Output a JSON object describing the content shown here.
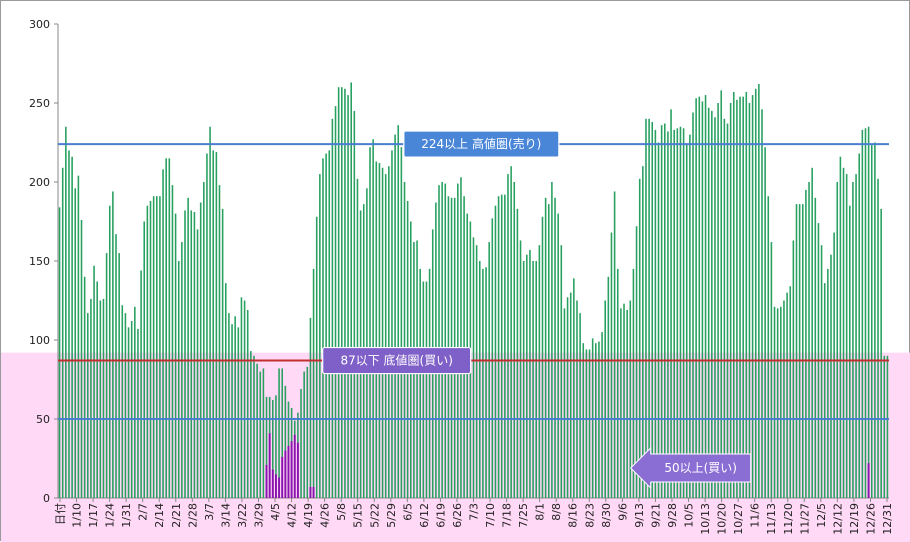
{
  "chart_data": {
    "type": "bar",
    "title": "",
    "xlabel": "",
    "ylabel": "",
    "ylim": [
      0,
      300
    ],
    "yticks": [
      0,
      50,
      100,
      150,
      200,
      250,
      300
    ],
    "grid": false,
    "xticks": [
      "日付",
      "1/10",
      "1/17",
      "1/24",
      "1/31",
      "2/7",
      "2/14",
      "2/21",
      "2/28",
      "3/7",
      "3/14",
      "3/22",
      "3/29",
      "4/5",
      "4/12",
      "4/19",
      "4/26",
      "5/8",
      "5/15",
      "5/22",
      "5/29",
      "6/5",
      "6/12",
      "6/19",
      "6/26",
      "7/3",
      "7/10",
      "7/18",
      "7/25",
      "8/1",
      "8/8",
      "8/16",
      "8/23",
      "8/30",
      "9/6",
      "9/13",
      "9/21",
      "9/28",
      "10/5",
      "10/13",
      "10/20",
      "10/27",
      "11/6",
      "11/13",
      "11/20",
      "11/27",
      "12/5",
      "12/12",
      "12/19",
      "12/26",
      "12/31"
    ],
    "background_band": {
      "y_max": 92,
      "color": "#ffd9f5"
    },
    "series": [
      {
        "color": "#27a060",
        "values": [
          184,
          209,
          235,
          220,
          216,
          196,
          204,
          176,
          140,
          117,
          126,
          147,
          137,
          125,
          126,
          155,
          185,
          194,
          167,
          155,
          122,
          117,
          108,
          112,
          121,
          107,
          144,
          175,
          185,
          188,
          191,
          191,
          191,
          208,
          215,
          215,
          198,
          180,
          150,
          162,
          182,
          190,
          182,
          181,
          170,
          187,
          200,
          218,
          235,
          220,
          219,
          198,
          183,
          136,
          117,
          110,
          115,
          108,
          127,
          125,
          119,
          93,
          90,
          85,
          80,
          82,
          64,
          64,
          62,
          65,
          82,
          82,
          71,
          61,
          57,
          49,
          54,
          69,
          80,
          83,
          114,
          145,
          178,
          205,
          215,
          218,
          220,
          240,
          248,
          260,
          260,
          259,
          255,
          263,
          245,
          202,
          182,
          186,
          196,
          222,
          227,
          213,
          212,
          209,
          205,
          210,
          220,
          230,
          236,
          222,
          200,
          188,
          175,
          162,
          163,
          145,
          137,
          137,
          145,
          170,
          187,
          198,
          200,
          199,
          191,
          190,
          190,
          199,
          203,
          191,
          180,
          175,
          165,
          160,
          150,
          145,
          146,
          162,
          177,
          185,
          191,
          192,
          192,
          205,
          210,
          200,
          183,
          163,
          150,
          154,
          157,
          150,
          150,
          160,
          178,
          190,
          186,
          200,
          190,
          180,
          160,
          120,
          127,
          130,
          139,
          125,
          117,
          98,
          94,
          94,
          101,
          98,
          99,
          105,
          125,
          140,
          168,
          194,
          145,
          120,
          123,
          119,
          125,
          145,
          172,
          202,
          210,
          240,
          240,
          238,
          233,
          225,
          236,
          237,
          232,
          246,
          233,
          234,
          235,
          234,
          224,
          230,
          244,
          253,
          254,
          251,
          255,
          247,
          245,
          241,
          250,
          258,
          240,
          237,
          250,
          257,
          252,
          254,
          254,
          257,
          250,
          255,
          259,
          262,
          246,
          222,
          191,
          162,
          121,
          120,
          121,
          125,
          130,
          134,
          163,
          186,
          186,
          186,
          195,
          200,
          209,
          190,
          174,
          160,
          136,
          145,
          154,
          168,
          200,
          216,
          209,
          205,
          185,
          200,
          205,
          218,
          233,
          234,
          235,
          224,
          225,
          202,
          183,
          90,
          90
        ]
      },
      {
        "color": "#8b12b0",
        "values": [
          0,
          0,
          0,
          0,
          0,
          0,
          0,
          0,
          0,
          0,
          0,
          0,
          0,
          0,
          0,
          0,
          0,
          0,
          0,
          0,
          0,
          0,
          0,
          0,
          0,
          0,
          0,
          0,
          0,
          0,
          0,
          0,
          0,
          0,
          0,
          0,
          0,
          0,
          0,
          0,
          0,
          0,
          0,
          0,
          0,
          0,
          0,
          0,
          0,
          0,
          0,
          0,
          0,
          0,
          0,
          0,
          0,
          0,
          0,
          0,
          0,
          0,
          0,
          0,
          0,
          0,
          21,
          41,
          18,
          15,
          13,
          26,
          30,
          33,
          36,
          40,
          35,
          0,
          0,
          0,
          7,
          7,
          0,
          0,
          0,
          0,
          0,
          0,
          0,
          0,
          0,
          0,
          0,
          0,
          0,
          0,
          0,
          0,
          0,
          0,
          0,
          0,
          0,
          0,
          0,
          0,
          0,
          0,
          0,
          0,
          0,
          0,
          0,
          0,
          0,
          0,
          0,
          0,
          0,
          0,
          0,
          0,
          0,
          0,
          0,
          0,
          0,
          0,
          0,
          0,
          0,
          0,
          0,
          0,
          0,
          0,
          0,
          0,
          0,
          0,
          0,
          0,
          0,
          0,
          0,
          0,
          0,
          0,
          0,
          0,
          0,
          0,
          0,
          0,
          0,
          0,
          0,
          0,
          0,
          0,
          0,
          0,
          0,
          0,
          0,
          0,
          0,
          0,
          0,
          0,
          0,
          0,
          0,
          0,
          0,
          0,
          0,
          0,
          0,
          0,
          0,
          0,
          0,
          0,
          0,
          0,
          0,
          0,
          0,
          0,
          0,
          0,
          0,
          0,
          0,
          0,
          0,
          0,
          0,
          0,
          0,
          0,
          0,
          0,
          0,
          0,
          0,
          0,
          0,
          0,
          0,
          0,
          0,
          0,
          0,
          0,
          0,
          0,
          0,
          0,
          0,
          0,
          0,
          0,
          0,
          0,
          0,
          0,
          0,
          0,
          0,
          0,
          0,
          0,
          0,
          0,
          0,
          0,
          0,
          0,
          0,
          0,
          0,
          0,
          0,
          0,
          0,
          0,
          0,
          0,
          0,
          0,
          0,
          0,
          0,
          0,
          0,
          0,
          22,
          0,
          0,
          0,
          0,
          0,
          0,
          0,
          0,
          0,
          0,
          0,
          0,
          0,
          0,
          0,
          0,
          0,
          0,
          0,
          0,
          0,
          0,
          0,
          0,
          0,
          0,
          0,
          0,
          0,
          0,
          0,
          0,
          0,
          0,
          0,
          0,
          0,
          0,
          0,
          0,
          0,
          0,
          0,
          0,
          0
        ]
      }
    ],
    "reference_lines": [
      {
        "y": 224,
        "color": "#4a7fd0",
        "label": "224以上  高値圏(売り)"
      },
      {
        "y": 87,
        "color": "#c03030",
        "label": "87以下  底値圏(買い)"
      },
      {
        "y": 50,
        "color": "#4a7fd0",
        "label": ""
      }
    ],
    "annotations": [
      {
        "text": "224以上  高値圏(売り)",
        "at_x_index": 135,
        "at_y": 224,
        "fill": "#4a86d8",
        "shape": "box"
      },
      {
        "text": "87以下  底値圏(買い)",
        "at_x_index": 108,
        "at_y": 87,
        "fill": "#7f60c8",
        "shape": "box"
      },
      {
        "text": "50以上(買い)",
        "at_x_index": 189,
        "at_y": 19,
        "fill": "#8a6ed4",
        "shape": "left-arrow"
      }
    ]
  }
}
